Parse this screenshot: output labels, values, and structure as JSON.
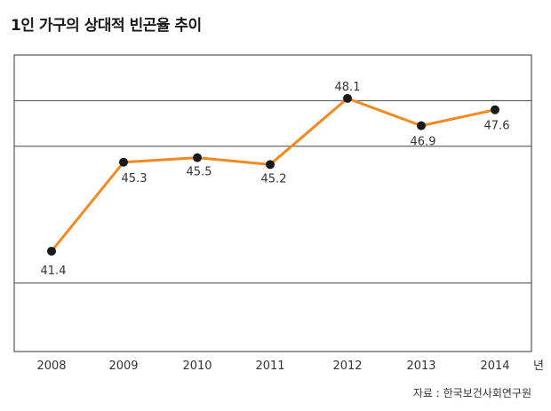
{
  "title": "1인 가구의 상대적 빈곤율 추이",
  "source": "자료 : 한국보건사회연구원",
  "chart_data": {
    "type": "line",
    "title": "1인 가구의 상대적 빈곤율 추이",
    "categories": [
      "2008",
      "2009",
      "2010",
      "2011",
      "2012",
      "2013",
      "2014"
    ],
    "x_unit": "년",
    "series": [
      {
        "values": [
          41.4,
          45.3,
          45.5,
          45.2,
          48.1,
          46.9,
          47.6
        ]
      }
    ],
    "data_labels": [
      "41.4",
      "45.3",
      "45.5",
      "45.2",
      "48.1",
      "46.9",
      "47.6"
    ],
    "ylim": [
      37,
      50
    ],
    "grid_values": [
      40,
      46,
      48
    ],
    "grid": true,
    "line_color": "#f28a22",
    "marker_color": "#1a1a1a"
  }
}
